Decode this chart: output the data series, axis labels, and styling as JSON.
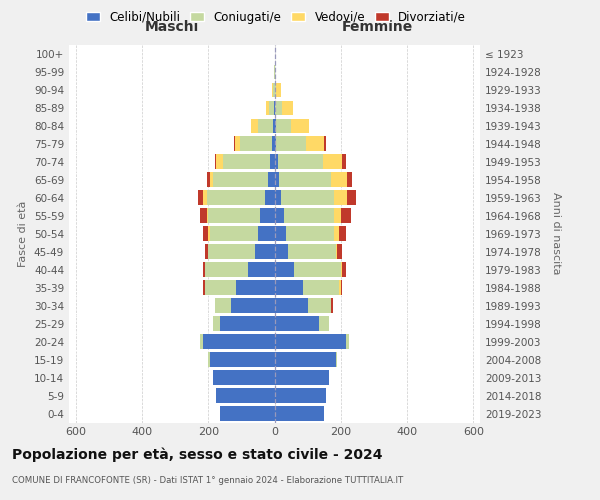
{
  "age_groups": [
    "0-4",
    "5-9",
    "10-14",
    "15-19",
    "20-24",
    "25-29",
    "30-34",
    "35-39",
    "40-44",
    "45-49",
    "50-54",
    "55-59",
    "60-64",
    "65-69",
    "70-74",
    "75-79",
    "80-84",
    "85-89",
    "90-94",
    "95-99",
    "100+"
  ],
  "birth_years": [
    "2019-2023",
    "2014-2018",
    "2009-2013",
    "2004-2008",
    "1999-2003",
    "1994-1998",
    "1989-1993",
    "1984-1988",
    "1979-1983",
    "1974-1978",
    "1969-1973",
    "1964-1968",
    "1959-1963",
    "1954-1958",
    "1949-1953",
    "1944-1948",
    "1939-1943",
    "1934-1938",
    "1929-1933",
    "1924-1928",
    "≤ 1923"
  ],
  "male": {
    "celibi": [
      165,
      175,
      185,
      195,
      215,
      165,
      130,
      115,
      80,
      60,
      50,
      45,
      30,
      20,
      15,
      8,
      5,
      2,
      0,
      0,
      0
    ],
    "coniugati": [
      0,
      0,
      0,
      5,
      10,
      20,
      50,
      95,
      130,
      140,
      145,
      155,
      175,
      165,
      140,
      95,
      45,
      15,
      5,
      1,
      0
    ],
    "vedovi": [
      0,
      0,
      0,
      0,
      0,
      0,
      0,
      0,
      0,
      0,
      5,
      5,
      10,
      10,
      20,
      15,
      20,
      8,
      2,
      0,
      0
    ],
    "divorziati": [
      0,
      0,
      0,
      0,
      0,
      0,
      0,
      5,
      5,
      10,
      15,
      20,
      15,
      10,
      5,
      5,
      0,
      0,
      0,
      0,
      0
    ]
  },
  "female": {
    "nubili": [
      150,
      155,
      165,
      185,
      215,
      135,
      100,
      85,
      60,
      40,
      35,
      30,
      20,
      15,
      10,
      5,
      5,
      2,
      0,
      0,
      0
    ],
    "coniugate": [
      0,
      0,
      0,
      5,
      10,
      30,
      70,
      110,
      140,
      145,
      145,
      150,
      160,
      155,
      135,
      90,
      45,
      20,
      5,
      1,
      0
    ],
    "vedove": [
      0,
      0,
      0,
      0,
      0,
      0,
      0,
      5,
      5,
      5,
      15,
      20,
      40,
      50,
      60,
      55,
      55,
      35,
      15,
      1,
      0
    ],
    "divorziate": [
      0,
      0,
      0,
      0,
      0,
      0,
      5,
      5,
      10,
      15,
      20,
      30,
      25,
      15,
      10,
      5,
      0,
      0,
      0,
      0,
      0
    ]
  },
  "colors": {
    "celibi": "#4472C4",
    "coniugati": "#C5D9A0",
    "vedovi": "#FFD966",
    "divorziati": "#C0392B"
  },
  "xlim": 620,
  "title": "Popolazione per età, sesso e stato civile - 2024",
  "subtitle": "COMUNE DI FRANCOFONTE (SR) - Dati ISTAT 1° gennaio 2024 - Elaborazione TUTTITALIA.IT",
  "ylabel_left": "Fasce di età",
  "ylabel_right": "Anni di nascita",
  "xlabel_left": "Maschi",
  "xlabel_right": "Femmine",
  "bg_color": "#f0f0f0",
  "plot_bg": "#ffffff",
  "legend_labels": [
    "Celibi/Nubili",
    "Coniugati/e",
    "Vedovi/e",
    "Divorziati/e"
  ]
}
